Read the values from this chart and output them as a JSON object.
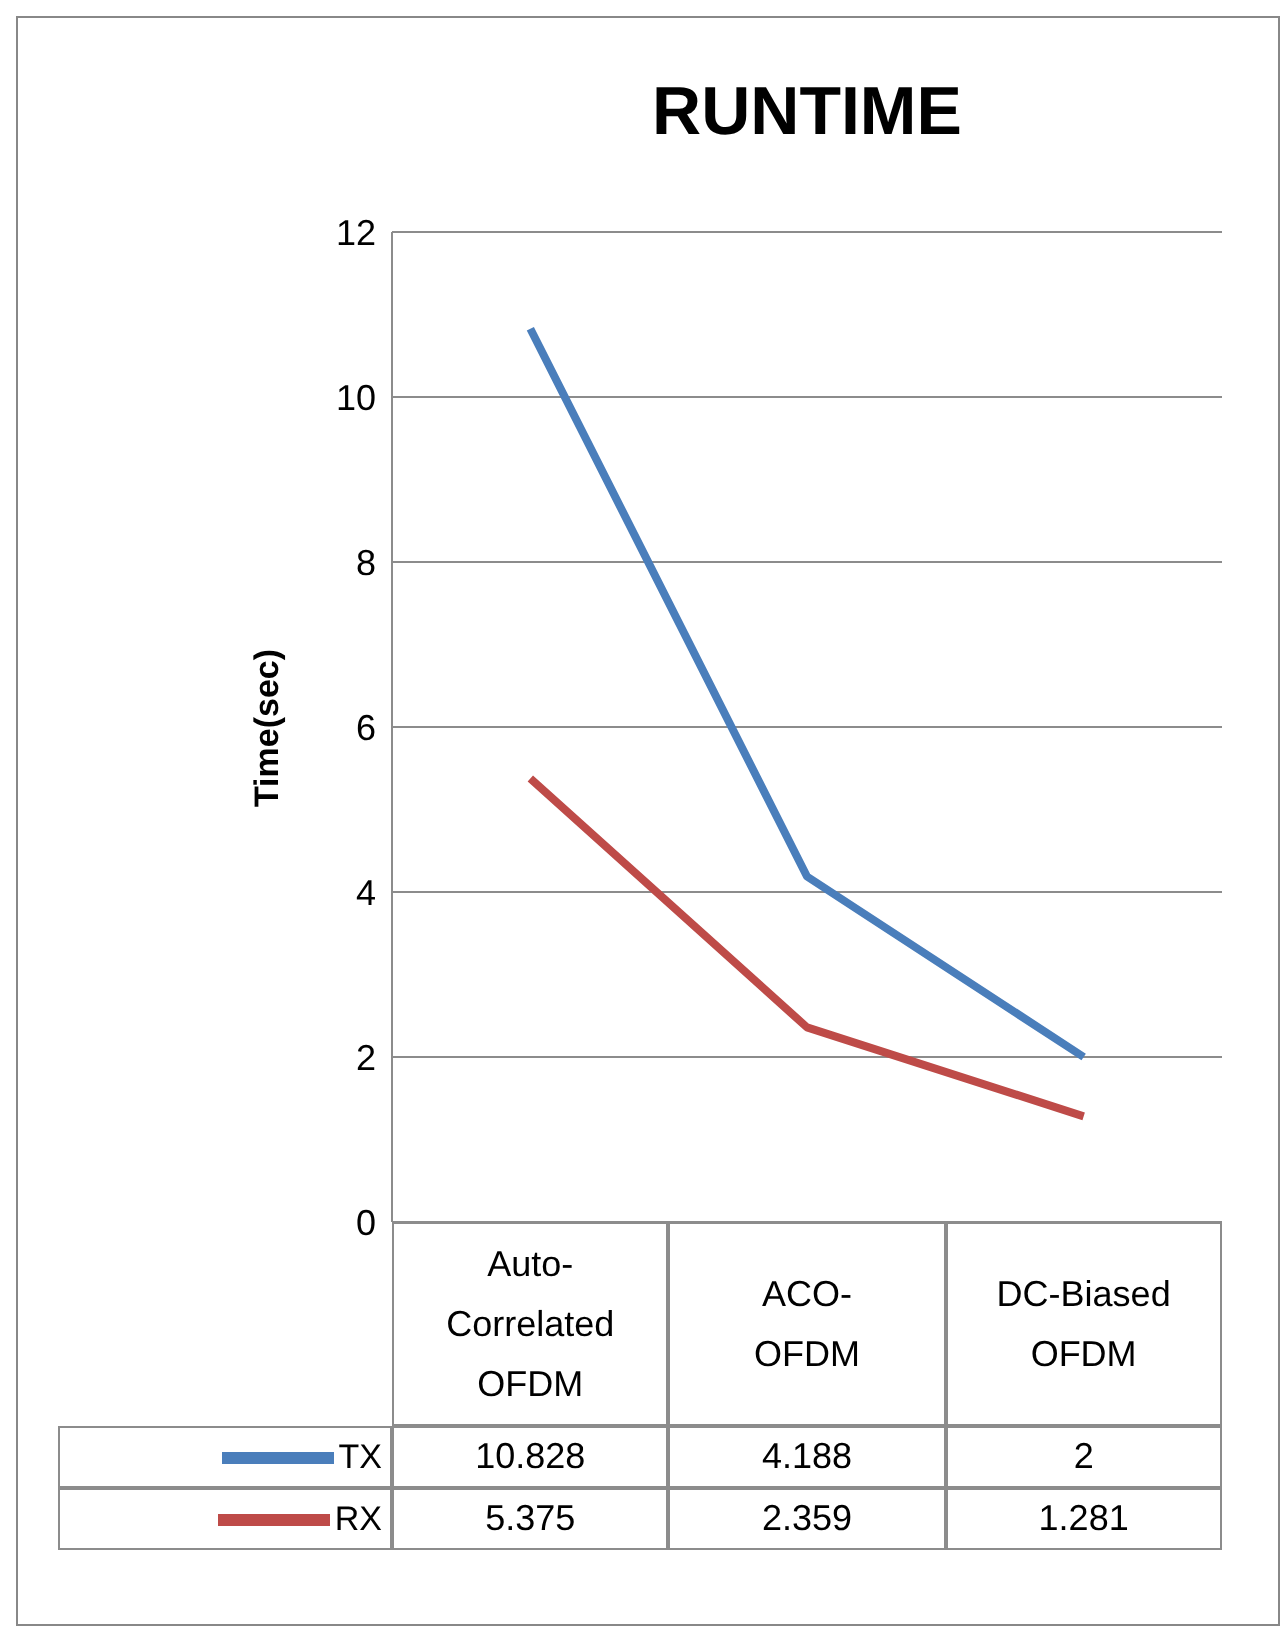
{
  "chart_data": {
    "type": "line",
    "title": "RUNTIME",
    "ylabel": "Time(sec)",
    "categories": [
      "Auto-Correlated OFDM",
      "ACO-OFDM",
      "DC-Biased OFDM"
    ],
    "series": [
      {
        "name": "TX",
        "color": "#4a7ebb",
        "values": [
          10.828,
          4.188,
          2
        ]
      },
      {
        "name": "RX",
        "color": "#be4b48",
        "values": [
          5.375,
          2.359,
          1.281
        ]
      }
    ],
    "ylim": [
      0,
      12
    ],
    "yticks": [
      0,
      2,
      4,
      6,
      8,
      10,
      12
    ],
    "grid": "y",
    "legend": "bottom",
    "data_labels": true,
    "marker": "none",
    "line_style": "solid"
  }
}
